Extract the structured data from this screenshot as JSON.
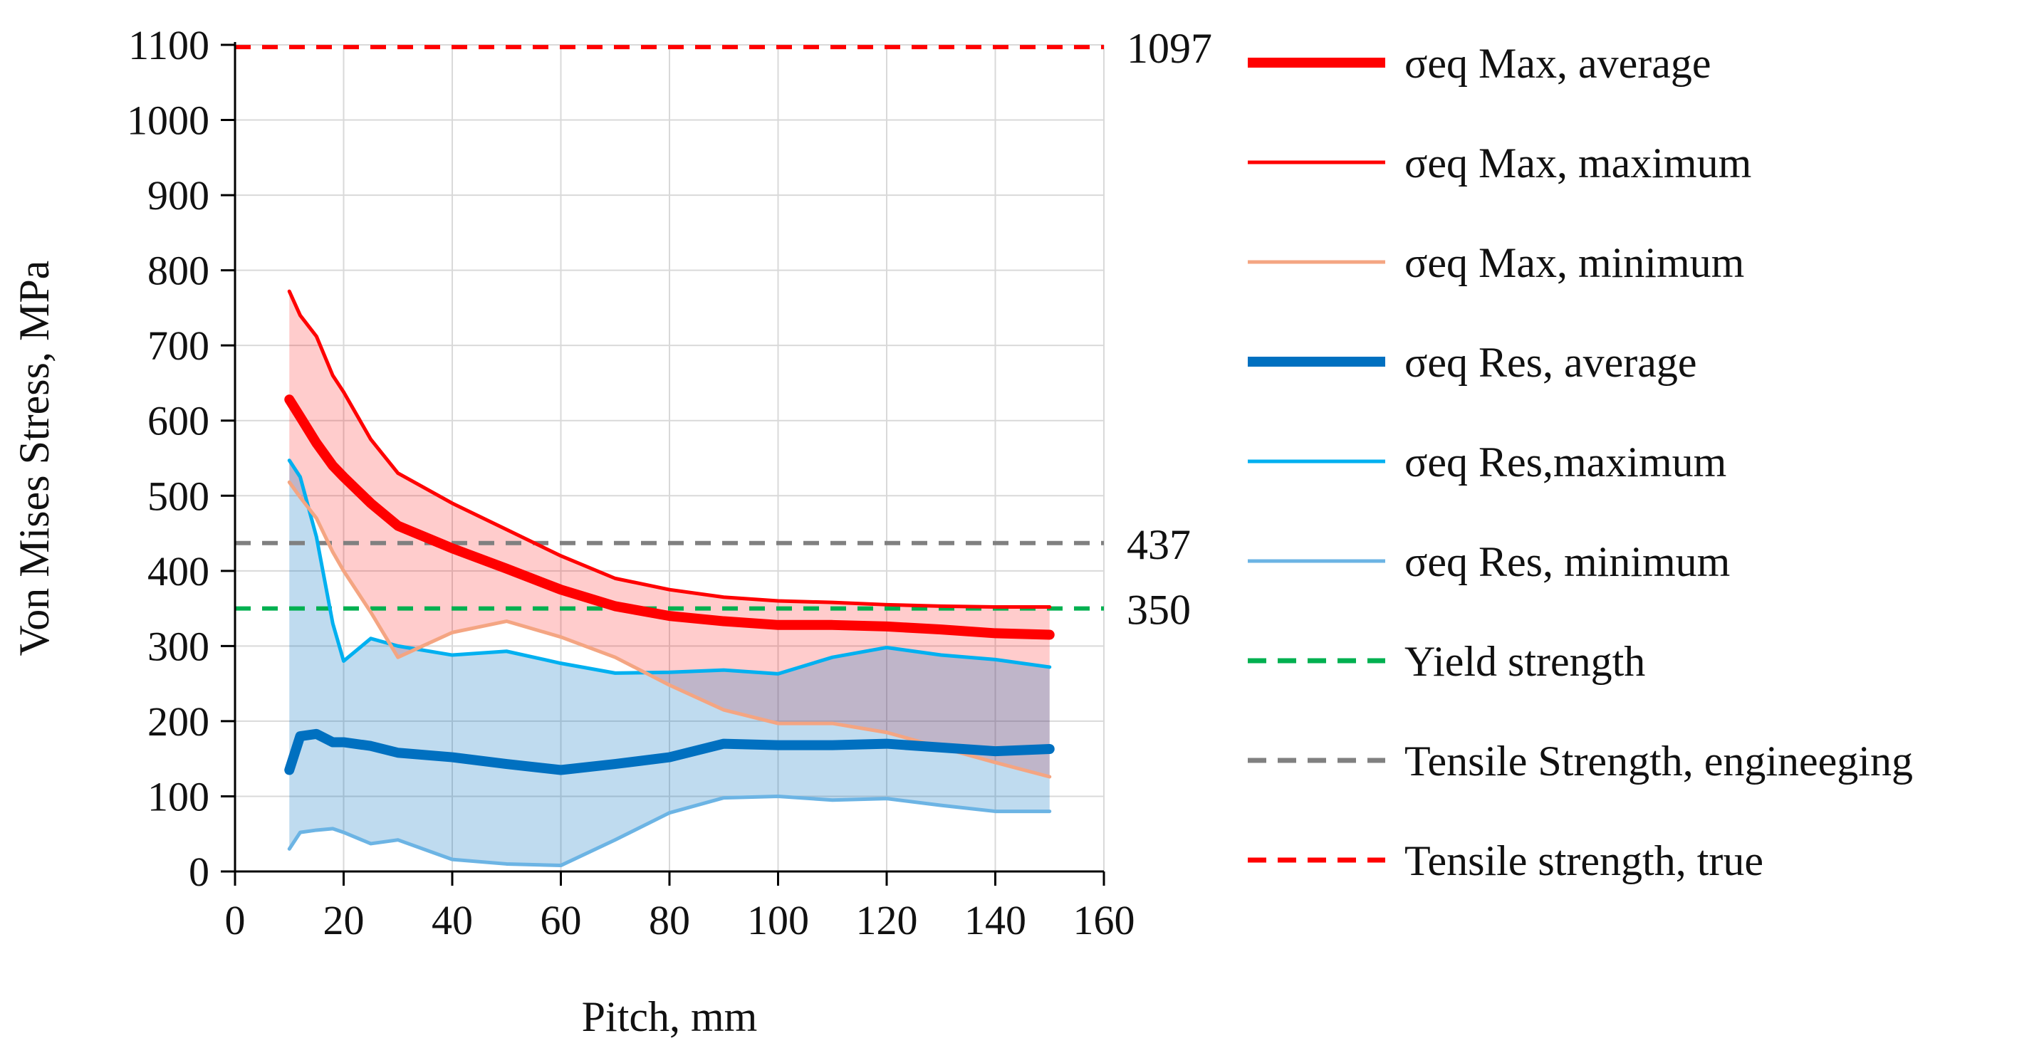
{
  "chart_data": {
    "type": "line",
    "title": "",
    "xlabel": "Pitch, mm",
    "ylabel": "Von Mises Stress, MPa",
    "xlim": [
      0,
      160
    ],
    "ylim": [
      0,
      1100
    ],
    "xticks": [
      0,
      20,
      40,
      60,
      80,
      100,
      120,
      140,
      160
    ],
    "yticks": [
      0,
      100,
      200,
      300,
      400,
      500,
      600,
      700,
      800,
      900,
      1000,
      1100
    ],
    "grid": true,
    "legend_position": "right",
    "series": [
      {
        "name": "σeq Max, average",
        "color": "#ff0000",
        "style": "solid-thick",
        "x": [
          10,
          12,
          15,
          18,
          20,
          25,
          30,
          40,
          50,
          60,
          70,
          80,
          90,
          100,
          110,
          120,
          130,
          140,
          150
        ],
        "y": [
          628,
          605,
          570,
          540,
          525,
          490,
          460,
          430,
          403,
          375,
          353,
          340,
          333,
          328,
          328,
          326,
          322,
          317,
          315
        ]
      },
      {
        "name": " σeq Max, maximum",
        "color": "#ff0000",
        "style": "solid",
        "x": [
          10,
          12,
          15,
          18,
          20,
          25,
          30,
          40,
          50,
          60,
          70,
          80,
          90,
          100,
          110,
          120,
          130,
          140,
          150
        ],
        "y": [
          772,
          740,
          712,
          660,
          638,
          575,
          530,
          490,
          455,
          420,
          390,
          375,
          365,
          360,
          358,
          355,
          353,
          352,
          352
        ]
      },
      {
        "name": "σeq Max, minimum",
        "color": "#f4a582",
        "style": "solid",
        "x": [
          10,
          12,
          15,
          18,
          20,
          25,
          30,
          40,
          50,
          60,
          70,
          80,
          90,
          100,
          110,
          120,
          130,
          140,
          150
        ],
        "y": [
          518,
          498,
          470,
          425,
          400,
          345,
          285,
          318,
          333,
          312,
          285,
          248,
          215,
          197,
          197,
          185,
          165,
          145,
          126
        ]
      },
      {
        "name": "σeq Res, average",
        "color": "#0070c0",
        "style": "solid-thick",
        "x": [
          10,
          12,
          15,
          18,
          20,
          25,
          30,
          40,
          50,
          60,
          70,
          80,
          90,
          100,
          110,
          120,
          130,
          140,
          150
        ],
        "y": [
          135,
          180,
          183,
          172,
          172,
          167,
          158,
          152,
          143,
          135,
          143,
          152,
          170,
          168,
          168,
          170,
          165,
          160,
          163
        ]
      },
      {
        "name": "σeq Res,maximum",
        "color": "#00b0f0",
        "style": "solid",
        "x": [
          10,
          12,
          15,
          18,
          20,
          25,
          30,
          40,
          50,
          60,
          70,
          80,
          90,
          100,
          110,
          120,
          130,
          140,
          150
        ],
        "y": [
          547,
          525,
          445,
          330,
          280,
          310,
          300,
          288,
          293,
          277,
          264,
          265,
          268,
          263,
          285,
          298,
          288,
          282,
          272
        ]
      },
      {
        "name": "σeq Res, minimum",
        "color": "#6cb4e4",
        "style": "solid",
        "x": [
          10,
          12,
          15,
          18,
          20,
          25,
          30,
          40,
          50,
          60,
          70,
          80,
          90,
          100,
          110,
          120,
          130,
          140,
          150
        ],
        "y": [
          30,
          52,
          55,
          57,
          52,
          37,
          42,
          16,
          10,
          8,
          42,
          78,
          98,
          100,
          95,
          97,
          88,
          80,
          80
        ]
      },
      {
        "name": "Yield strength",
        "color": "#00b050",
        "style": "dashed",
        "value": 350,
        "value_label": "350"
      },
      {
        "name": "Tensile Strength, engineeging",
        "color": "#808080",
        "style": "dashed",
        "value": 437,
        "value_label": "437"
      },
      {
        "name": "Tensile strength, true",
        "color": "#ff0000",
        "style": "dashed",
        "value": 1097,
        "value_label": "1097"
      }
    ],
    "bands": [
      {
        "between": [
          "σeq Max, minimum",
          " σeq Max, maximum"
        ],
        "color": "#ff0000",
        "opacity": 0.2
      },
      {
        "between": [
          "σeq Res, minimum",
          "σeq Res,maximum"
        ],
        "color": "#0070c0",
        "opacity": 0.25
      }
    ]
  }
}
